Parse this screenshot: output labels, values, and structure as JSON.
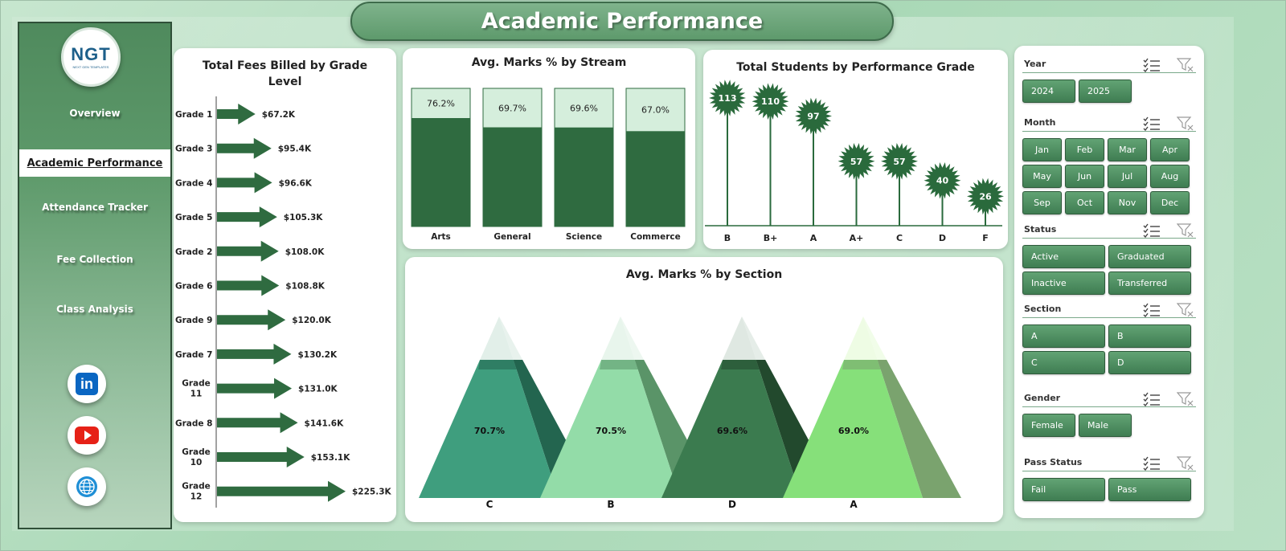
{
  "page_title": "Academic Performance",
  "logo": {
    "brand": "NGT",
    "tagline": "NEXT GEN TEMPLATES"
  },
  "nav": [
    {
      "label": "Overview",
      "active": false
    },
    {
      "label": "Academic Performance",
      "active": true
    },
    {
      "label": "Attendance Tracker",
      "active": false
    },
    {
      "label": "Fee Collection",
      "active": false
    },
    {
      "label": "Class Analysis",
      "active": false
    }
  ],
  "social": [
    {
      "icon": "linkedin-icon",
      "text": "in",
      "color": "#0a66c2"
    },
    {
      "icon": "youtube-icon",
      "text": "",
      "color": "#e62117"
    },
    {
      "icon": "globe-icon",
      "text": "",
      "color": "#1f8fd6"
    }
  ],
  "colors": {
    "dark_green": "#2f6b40",
    "light_green": "#d5eedc",
    "spike_green": "#2a6a3c"
  },
  "chart_data": [
    {
      "id": "fees",
      "type": "bar",
      "title": "Total Fees Billed by Grade Level",
      "title_lines": [
        "Total Fees Billed by Grade",
        "Level"
      ],
      "orientation": "horizontal",
      "categories": [
        "Grade 1",
        "Grade 3",
        "Grade 4",
        "Grade 5",
        "Grade 2",
        "Grade 6",
        "Grade 9",
        "Grade 7",
        "Grade 11",
        "Grade 8",
        "Grade 10",
        "Grade 12"
      ],
      "values": [
        67.2,
        95.4,
        96.6,
        105.3,
        108.0,
        108.8,
        120.0,
        130.2,
        131.0,
        141.6,
        153.1,
        225.3
      ],
      "labels": [
        "$67.2K",
        "$95.4K",
        "$96.6K",
        "$105.3K",
        "$108.0K",
        "$108.8K",
        "$120.0K",
        "$130.2K",
        "$131.0K",
        "$141.6K",
        "$153.1K",
        "$225.3K"
      ]
    },
    {
      "id": "stream",
      "type": "bar",
      "title": "Avg. Marks % by Stream",
      "categories": [
        "Arts",
        "General",
        "Science",
        "Commerce"
      ],
      "values": [
        76.2,
        69.7,
        69.6,
        67.0
      ],
      "labels": [
        "76.2%",
        "69.7%",
        "69.6%",
        "67.0%"
      ],
      "ylim": [
        0,
        100
      ]
    },
    {
      "id": "grades",
      "type": "bar",
      "title": "Total Students by Performance Grade",
      "categories": [
        "B",
        "B+",
        "A",
        "A+",
        "C",
        "D",
        "F"
      ],
      "values": [
        113,
        110,
        97,
        57,
        57,
        40,
        26
      ]
    },
    {
      "id": "section",
      "type": "bar",
      "title": "Avg. Marks % by Section",
      "categories": [
        "C",
        "B",
        "D",
        "A"
      ],
      "values": [
        70.7,
        70.5,
        69.6,
        69.0
      ],
      "labels": [
        "70.7%",
        "70.5%",
        "69.6%",
        "69.0%"
      ],
      "colors": [
        {
          "front": "#3f9e7e",
          "side": "#23654f",
          "cap": "#e2efe9"
        },
        {
          "front": "#93dca8",
          "side": "#5a9468",
          "cap": "#e8f5ec"
        },
        {
          "front": "#3b7b4f",
          "side": "#22492d",
          "cap": "#dfe8e2"
        },
        {
          "front": "#86e07a",
          "side": "#7aa36e",
          "cap": "#eefce4"
        }
      ]
    }
  ],
  "slicers": [
    {
      "label": "Year",
      "options": [
        "2024",
        "2025"
      ],
      "cols": 4,
      "width": 66
    },
    {
      "label": "Month",
      "options": [
        "Jan",
        "Feb",
        "Mar",
        "Apr",
        "May",
        "Jun",
        "Jul",
        "Aug",
        "Sep",
        "Oct",
        "Nov",
        "Dec"
      ],
      "cols": 4,
      "width": 49
    },
    {
      "label": "Status",
      "options": [
        "Active",
        "Graduated",
        "Inactive",
        "Transferred"
      ],
      "cols": 2,
      "width": 103
    },
    {
      "label": "Section",
      "options": [
        "A",
        "B",
        "C",
        "D"
      ],
      "cols": 2,
      "width": 103
    },
    {
      "label": "Gender",
      "options": [
        "Female",
        "Male"
      ],
      "cols": 4,
      "width": 66
    },
    {
      "label": "Pass Status",
      "options": [
        "Fail",
        "Pass"
      ],
      "cols": 2,
      "width": 103
    }
  ]
}
